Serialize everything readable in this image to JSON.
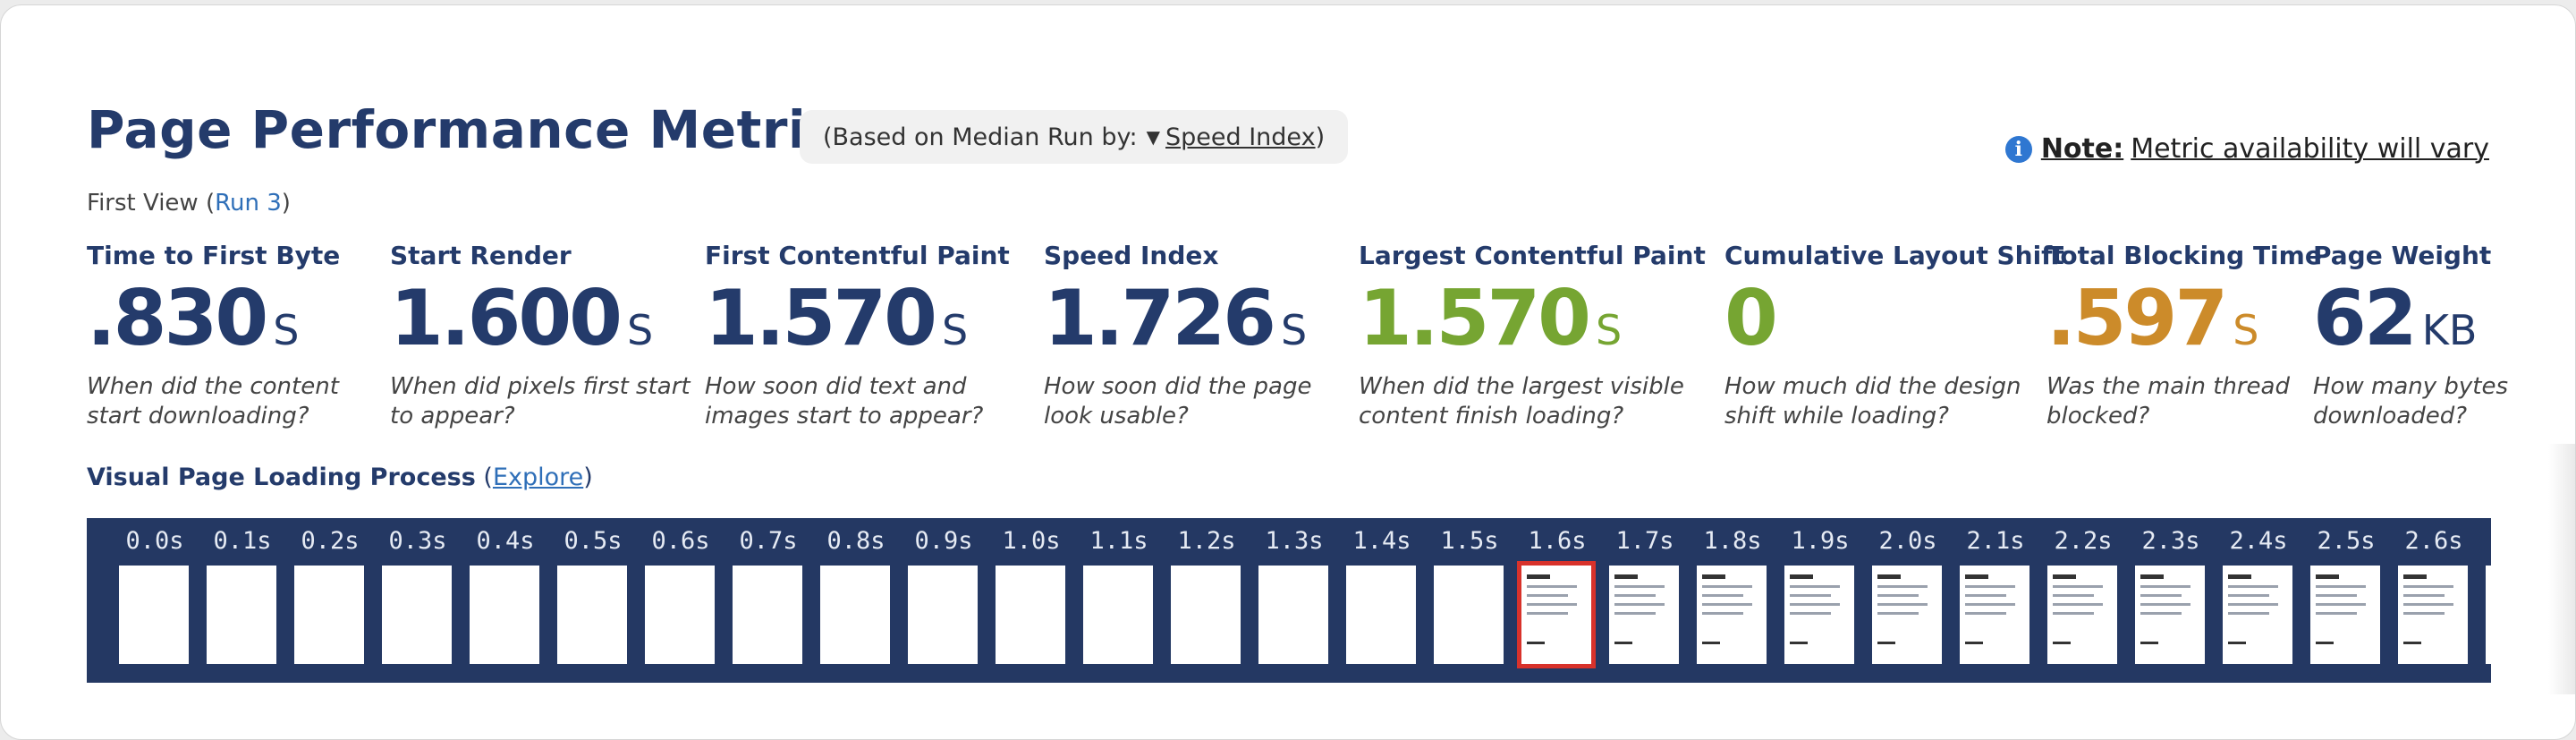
{
  "header": {
    "title": "Page Performance Metrics",
    "based_on_prefix": "(Based on Median Run by:",
    "based_on_metric": "Speed Index",
    "based_on_suffix": ")",
    "note_label": "Note:",
    "note_text": "Metric availability will vary"
  },
  "view": {
    "prefix": "First View (",
    "run_link": "Run 3",
    "suffix": ")"
  },
  "metrics": [
    {
      "label": "Time to First Byte",
      "value": ".830",
      "unit": "S",
      "desc1": "When did the content",
      "desc2": "start downloading?"
    },
    {
      "label": "Start Render",
      "value": "1.600",
      "unit": "S",
      "desc1": "When did pixels first start",
      "desc2": "to appear?"
    },
    {
      "label": "First Contentful Paint",
      "value": "1.570",
      "unit": "S",
      "desc1": "How soon did text and",
      "desc2": "images start to appear?"
    },
    {
      "label": "Speed Index",
      "value": "1.726",
      "unit": "S",
      "desc1": "How soon did the page",
      "desc2": "look usable?"
    },
    {
      "label": "Largest Contentful Paint",
      "value": "1.570",
      "unit": "S",
      "desc1": "When did the largest visible",
      "desc2": "content finish loading?",
      "status_color": "#76a532"
    },
    {
      "label": "Cumulative Layout Shift",
      "value": "0",
      "unit": "",
      "desc1": "How much did the design",
      "desc2": "shift while loading?",
      "status_color": "#76a532"
    },
    {
      "label": "Total Blocking Time",
      "value": ".597",
      "unit": "S",
      "desc1": "Was the main thread",
      "desc2": "blocked?",
      "status_color": "#cc8b2a"
    },
    {
      "label": "Page Weight",
      "value": "62",
      "unit": "KB",
      "desc1": "How many bytes",
      "desc2": "downloaded?"
    }
  ],
  "loading": {
    "title": "Visual Page Loading Process",
    "explore_prefix": "(",
    "explore_link": "Explore",
    "explore_suffix": ")",
    "frames": [
      "0.0s",
      "0.1s",
      "0.2s",
      "0.3s",
      "0.4s",
      "0.5s",
      "0.6s",
      "0.7s",
      "0.8s",
      "0.9s",
      "1.0s",
      "1.1s",
      "1.2s",
      "1.3s",
      "1.4s",
      "1.5s",
      "1.6s",
      "1.7s",
      "1.8s",
      "1.9s",
      "2.0s",
      "2.1s",
      "2.2s",
      "2.3s",
      "2.4s",
      "2.5s",
      "2.6s"
    ],
    "first_content_frame": 16,
    "highlighted_frame": 16
  },
  "colors": {
    "navy": "#243b6b",
    "good": "#76a532",
    "warn": "#cc8b2a",
    "strip_bg": "#243863",
    "highlight": "#d8322b",
    "link": "#2f6fb8"
  }
}
